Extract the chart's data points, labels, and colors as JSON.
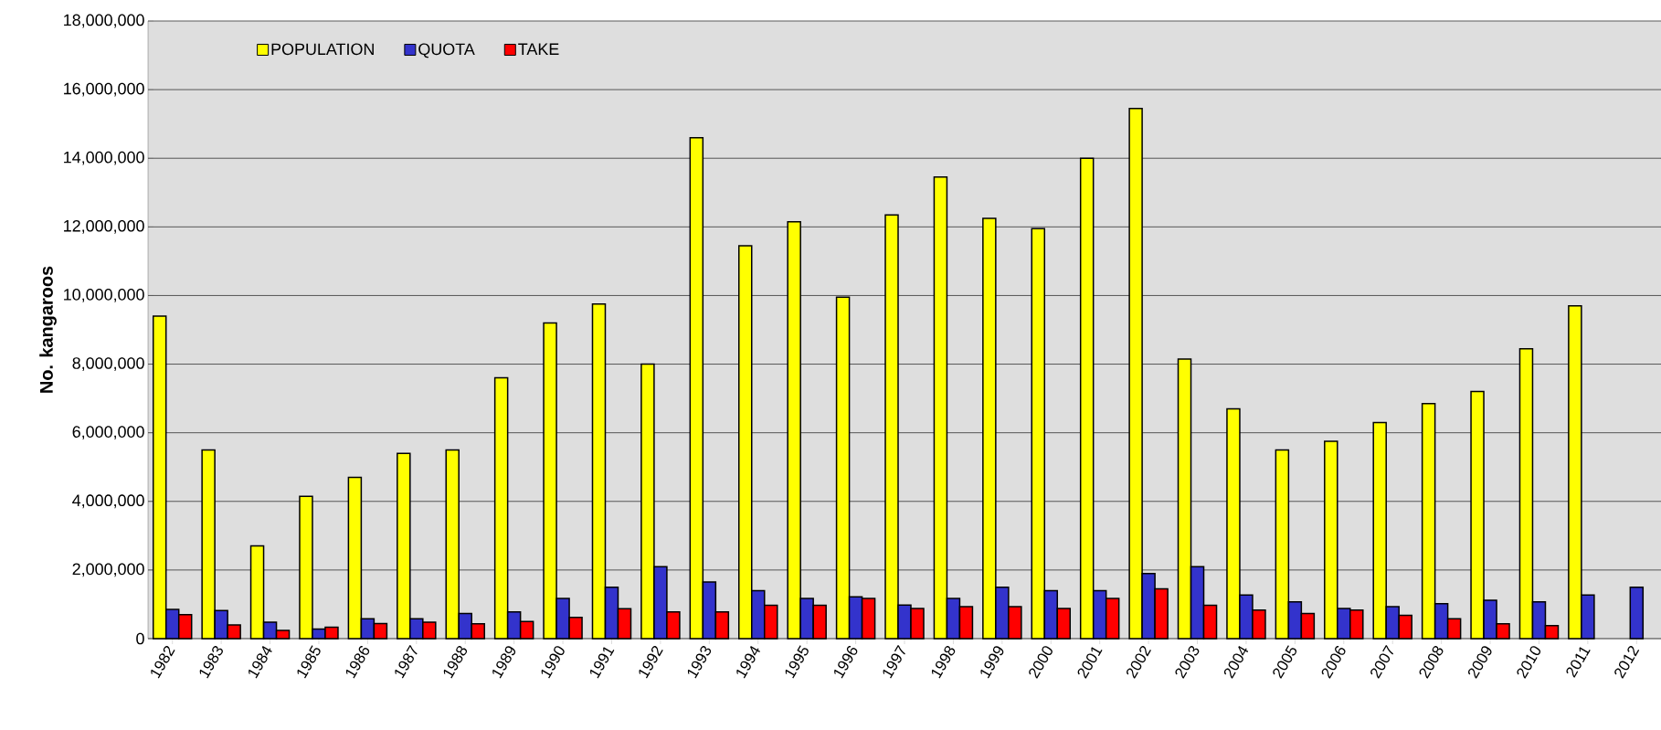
{
  "chart_data": {
    "type": "bar",
    "ylabel": "No. kangaroos",
    "categories": [
      "1982",
      "1983",
      "1984",
      "1985",
      "1986",
      "1987",
      "1988",
      "1989",
      "1990",
      "1991",
      "1992",
      "1993",
      "1994",
      "1995",
      "1996",
      "1997",
      "1998",
      "1999",
      "2000",
      "2001",
      "2002",
      "2003",
      "2004",
      "2005",
      "2006",
      "2007",
      "2008",
      "2009",
      "2010",
      "2011",
      "2012"
    ],
    "series": [
      {
        "name": "POPULATION",
        "color": "#ffff00",
        "values": [
          9400000,
          5500000,
          2700000,
          4150000,
          4700000,
          5400000,
          5500000,
          7600000,
          9200000,
          9750000,
          8000000,
          14600000,
          11450000,
          12150000,
          9950000,
          12350000,
          13450000,
          12250000,
          11950000,
          14000000,
          15450000,
          8150000,
          6700000,
          5500000,
          5750000,
          6300000,
          6850000,
          7200000,
          8450000,
          9700000,
          null
        ]
      },
      {
        "name": "QUOTA",
        "color": "#3333cc",
        "values": [
          850000,
          820000,
          480000,
          280000,
          580000,
          580000,
          730000,
          780000,
          1170000,
          1500000,
          2100000,
          1650000,
          1400000,
          1170000,
          1220000,
          980000,
          1170000,
          1500000,
          1400000,
          1400000,
          1900000,
          2100000,
          1270000,
          1070000,
          880000,
          930000,
          1020000,
          1120000,
          1070000,
          1270000,
          1500000
        ]
      },
      {
        "name": "TAKE",
        "color": "#ff0000",
        "values": [
          700000,
          400000,
          240000,
          330000,
          440000,
          480000,
          430000,
          500000,
          620000,
          870000,
          780000,
          780000,
          970000,
          970000,
          1170000,
          880000,
          930000,
          930000,
          880000,
          1170000,
          1450000,
          970000,
          830000,
          730000,
          830000,
          680000,
          580000,
          430000,
          380000,
          null,
          null
        ]
      }
    ],
    "ylim": [
      0,
      18000000
    ],
    "yticks": [
      {
        "value": 0,
        "label": "0"
      },
      {
        "value": 2000000,
        "label": "2,000,000"
      },
      {
        "value": 4000000,
        "label": "4,000,000"
      },
      {
        "value": 6000000,
        "label": "6,000,000"
      },
      {
        "value": 8000000,
        "label": "8,000,000"
      },
      {
        "value": 10000000,
        "label": "10,000,000"
      },
      {
        "value": 12000000,
        "label": "12,000,000"
      },
      {
        "value": 14000000,
        "label": "14,000,000"
      },
      {
        "value": 16000000,
        "label": "16,000,000"
      },
      {
        "value": 18000000,
        "label": "18,000,000"
      }
    ],
    "grid": "y",
    "legend": "top left"
  }
}
